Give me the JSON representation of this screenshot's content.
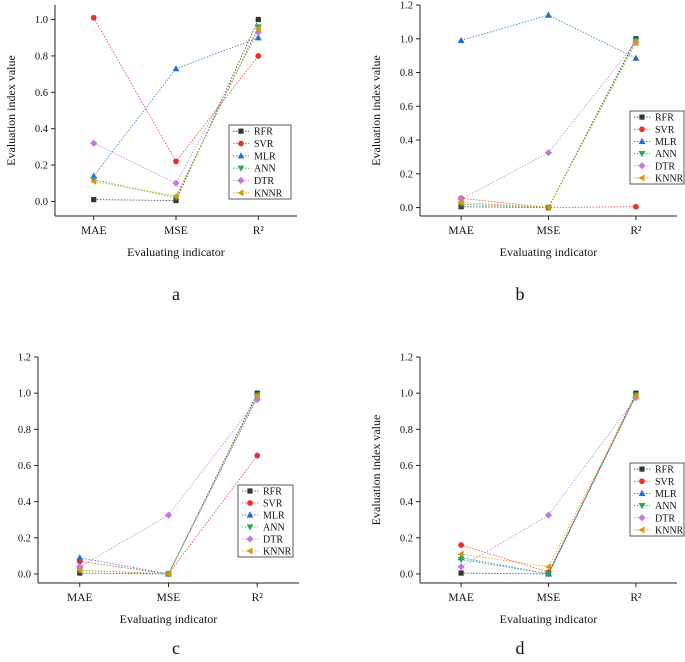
{
  "figure": {
    "panel_labels": [
      "a",
      "b",
      "c",
      "d"
    ]
  },
  "legend_style": {
    "RFR": {
      "color": "#333333",
      "marker": "square"
    },
    "SVR": {
      "color": "#e8312c",
      "marker": "circle"
    },
    "MLR": {
      "color": "#1f6fd6",
      "marker": "triangle-up"
    },
    "ANN": {
      "color": "#2aa84a",
      "marker": "triangle-down"
    },
    "DTR": {
      "color": "#c278e0",
      "marker": "diamond"
    },
    "KNNR": {
      "color": "#d49a08",
      "marker": "triangle-left"
    }
  },
  "chart_data": [
    {
      "panel": "a",
      "type": "line",
      "categories": [
        "MAE",
        "MSE",
        "R²"
      ],
      "xlabel": "Evaluating indicator",
      "ylabel": "Evaluation index value",
      "ylim": [
        -0.08,
        1.08
      ],
      "yticks": [
        0.0,
        0.2,
        0.4,
        0.6,
        0.8,
        1.0
      ],
      "ytick_labels": [
        "0.0",
        "0.2",
        "0.4",
        "0.6",
        "0.8",
        "1.0"
      ],
      "legend_position": "bottom-right",
      "series": [
        {
          "name": "RFR",
          "values": [
            0.01,
            0.005,
            1.0
          ]
        },
        {
          "name": "SVR",
          "values": [
            1.01,
            0.22,
            0.8
          ]
        },
        {
          "name": "MLR",
          "values": [
            0.14,
            0.73,
            0.9
          ]
        },
        {
          "name": "ANN",
          "values": [
            0.12,
            0.02,
            0.96
          ]
        },
        {
          "name": "DTR",
          "values": [
            0.32,
            0.1,
            0.93
          ]
        },
        {
          "name": "KNNR",
          "values": [
            0.11,
            0.03,
            0.95
          ]
        }
      ]
    },
    {
      "panel": "b",
      "type": "line",
      "categories": [
        "MAE",
        "MSE",
        "R²"
      ],
      "xlabel": "Evaluating indicator",
      "ylabel": "Evaluation index value",
      "ylim": [
        -0.05,
        1.2
      ],
      "yticks": [
        0.0,
        0.2,
        0.4,
        0.6,
        0.8,
        1.0,
        1.2
      ],
      "ytick_labels": [
        "0.0",
        "0.2",
        "0.4",
        "0.6",
        "0.8",
        "1.0",
        "1.2"
      ],
      "legend_position": "bottom-right",
      "series": [
        {
          "name": "RFR",
          "values": [
            0.005,
            0.0,
            1.0
          ]
        },
        {
          "name": "SVR",
          "values": [
            0.055,
            0.0,
            0.005
          ]
        },
        {
          "name": "MLR",
          "values": [
            0.99,
            1.14,
            0.885
          ]
        },
        {
          "name": "ANN",
          "values": [
            0.02,
            0.0,
            0.99
          ]
        },
        {
          "name": "DTR",
          "values": [
            0.05,
            0.325,
            0.98
          ]
        },
        {
          "name": "KNNR",
          "values": [
            0.03,
            0.0,
            0.975
          ]
        }
      ]
    },
    {
      "panel": "c",
      "type": "line",
      "categories": [
        "MAE",
        "MSE",
        "R²"
      ],
      "xlabel": "Evaluating indicator",
      "ylabel": "Evaluation index value",
      "ylim": [
        -0.05,
        1.2
      ],
      "yticks": [
        0.0,
        0.2,
        0.4,
        0.6,
        0.8,
        1.0,
        1.2
      ],
      "ytick_labels": [
        "0.0",
        "0.2",
        "0.4",
        "0.6",
        "0.8",
        "1.0",
        "1.2"
      ],
      "legend_position": "bottom-right",
      "series": [
        {
          "name": "RFR",
          "values": [
            0.005,
            0.0,
            1.0
          ]
        },
        {
          "name": "SVR",
          "values": [
            0.07,
            0.0,
            0.655
          ]
        },
        {
          "name": "MLR",
          "values": [
            0.09,
            0.0,
            0.975
          ]
        },
        {
          "name": "ANN",
          "values": [
            0.02,
            0.0,
            0.99
          ]
        },
        {
          "name": "DTR",
          "values": [
            0.04,
            0.325,
            0.965
          ]
        },
        {
          "name": "KNNR",
          "values": [
            0.02,
            0.0,
            0.985
          ]
        }
      ]
    },
    {
      "panel": "d",
      "type": "line",
      "categories": [
        "MAE",
        "MSE",
        "R²"
      ],
      "xlabel": "Evaluating indicator",
      "ylabel": "Evaluation index value",
      "ylim": [
        -0.05,
        1.2
      ],
      "yticks": [
        0.0,
        0.2,
        0.4,
        0.6,
        0.8,
        1.0,
        1.2
      ],
      "ytick_labels": [
        "0.0",
        "0.2",
        "0.4",
        "0.6",
        "0.8",
        "1.0",
        "1.2"
      ],
      "legend_position": "bottom-right",
      "series": [
        {
          "name": "RFR",
          "values": [
            0.005,
            0.0,
            1.0
          ]
        },
        {
          "name": "SVR",
          "values": [
            0.16,
            0.01,
            0.99
          ]
        },
        {
          "name": "MLR",
          "values": [
            0.09,
            0.0,
            0.985
          ]
        },
        {
          "name": "ANN",
          "values": [
            0.08,
            0.0,
            0.99
          ]
        },
        {
          "name": "DTR",
          "values": [
            0.04,
            0.325,
            0.975
          ]
        },
        {
          "name": "KNNR",
          "values": [
            0.11,
            0.04,
            0.985
          ]
        }
      ]
    }
  ]
}
